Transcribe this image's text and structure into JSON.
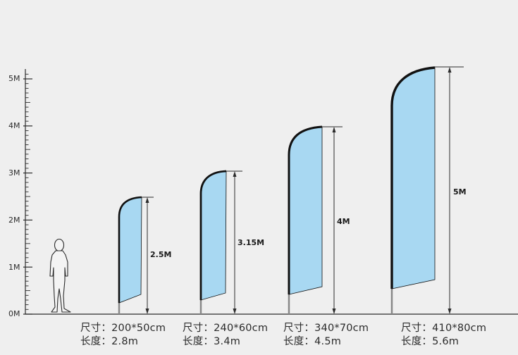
{
  "scale": {
    "labels": [
      "0M",
      "1M",
      "2M",
      "3M",
      "4M",
      "5M"
    ]
  },
  "colors": {
    "flag_fill": "#a8d8f2",
    "pole": "#111111",
    "line": "#2b2b2b",
    "background": "#efefef"
  },
  "figure": {
    "icon": "person-silhouette-icon"
  },
  "flags": [
    {
      "height_label": "2.5M",
      "size_label": "尺寸：200*50cm",
      "length_label": "长度：2.8m",
      "height_m": 2.5
    },
    {
      "height_label": "3.15M",
      "size_label": "尺寸：240*60cm",
      "length_label": "长度：3.4m",
      "height_m": 3.15
    },
    {
      "height_label": "4M",
      "size_label": "尺寸：340*70cm",
      "length_label": "长度：4.5m",
      "height_m": 4
    },
    {
      "height_label": "5M",
      "size_label": "尺寸：410*80cm",
      "length_label": "长度：5.6m",
      "height_m": 5
    }
  ]
}
